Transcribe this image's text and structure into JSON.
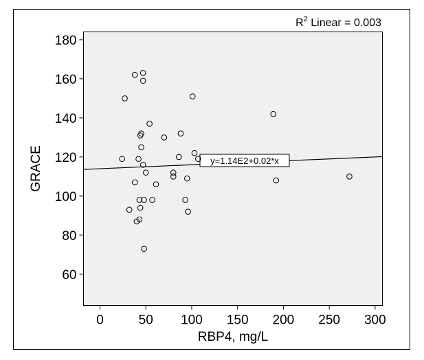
{
  "chart_data": {
    "type": "scatter",
    "xlabel": "RBP4, mg/L",
    "ylabel": "GRACE",
    "xlim": [
      -18,
      308
    ],
    "ylim": [
      44,
      184
    ],
    "x_ticks": [
      0,
      50,
      100,
      150,
      200,
      250,
      300
    ],
    "y_ticks": [
      60,
      80,
      100,
      120,
      140,
      160,
      180
    ],
    "x_tick_labels": [
      "0",
      "50",
      "100",
      "150",
      "200",
      "250",
      "300"
    ],
    "y_tick_labels": [
      "60",
      "80",
      "100",
      "120",
      "140",
      "160",
      "180"
    ],
    "grid": false,
    "plot_background": "#f0f0f0",
    "marker": "open-circle",
    "r2_label": {
      "prefix": "R",
      "exponent": "2",
      "suffix": " Linear = 0.003"
    },
    "fit_line": {
      "intercept": 114,
      "slope": 0.02,
      "label": "y=1.14E2+0.02*x"
    },
    "points": [
      {
        "x": 38,
        "y": 162
      },
      {
        "x": 47,
        "y": 163
      },
      {
        "x": 47,
        "y": 159
      },
      {
        "x": 27,
        "y": 150
      },
      {
        "x": 101,
        "y": 151
      },
      {
        "x": 189,
        "y": 142
      },
      {
        "x": 54,
        "y": 137
      },
      {
        "x": 45,
        "y": 132
      },
      {
        "x": 44,
        "y": 131
      },
      {
        "x": 88,
        "y": 132
      },
      {
        "x": 70,
        "y": 130
      },
      {
        "x": 45,
        "y": 125
      },
      {
        "x": 103,
        "y": 122
      },
      {
        "x": 86,
        "y": 120
      },
      {
        "x": 107,
        "y": 119
      },
      {
        "x": 24,
        "y": 119
      },
      {
        "x": 42,
        "y": 119
      },
      {
        "x": 47,
        "y": 116
      },
      {
        "x": 50,
        "y": 112
      },
      {
        "x": 80,
        "y": 112
      },
      {
        "x": 80,
        "y": 110
      },
      {
        "x": 95,
        "y": 109
      },
      {
        "x": 272,
        "y": 110
      },
      {
        "x": 192,
        "y": 108
      },
      {
        "x": 38,
        "y": 107
      },
      {
        "x": 61,
        "y": 106
      },
      {
        "x": 43,
        "y": 98
      },
      {
        "x": 48,
        "y": 98
      },
      {
        "x": 57,
        "y": 98
      },
      {
        "x": 93,
        "y": 98
      },
      {
        "x": 44,
        "y": 94
      },
      {
        "x": 32,
        "y": 93
      },
      {
        "x": 96,
        "y": 92
      },
      {
        "x": 43,
        "y": 88
      },
      {
        "x": 40,
        "y": 87
      },
      {
        "x": 48,
        "y": 73
      }
    ]
  }
}
